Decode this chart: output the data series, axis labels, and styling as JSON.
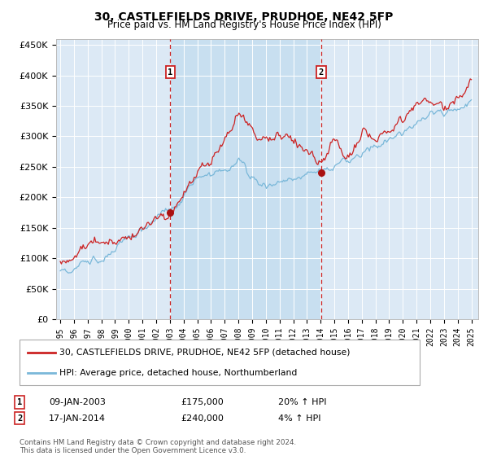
{
  "title": "30, CASTLEFIELDS DRIVE, PRUDHOE, NE42 5FP",
  "subtitle": "Price paid vs. HM Land Registry's House Price Index (HPI)",
  "background_color": "#ffffff",
  "plot_bg_color": "#dce9f5",
  "highlight_bg_color": "#c8dff0",
  "ylabel_ticks": [
    "£0",
    "£50K",
    "£100K",
    "£150K",
    "£200K",
    "£250K",
    "£300K",
    "£350K",
    "£400K",
    "£450K"
  ],
  "ytick_values": [
    0,
    50000,
    100000,
    150000,
    200000,
    250000,
    300000,
    350000,
    400000,
    450000
  ],
  "ylim": [
    0,
    460000
  ],
  "xlim_start": 1994.7,
  "xlim_end": 2025.5,
  "sale1_x": 2003.03,
  "sale1_y": 175000,
  "sale1_label": "1",
  "sale1_date": "09-JAN-2003",
  "sale1_price": "£175,000",
  "sale1_hpi": "20% ↑ HPI",
  "sale2_x": 2014.04,
  "sale2_y": 240000,
  "sale2_label": "2",
  "sale2_date": "17-JAN-2014",
  "sale2_price": "£240,000",
  "sale2_hpi": "4% ↑ HPI",
  "hpi_color": "#7ab8d9",
  "price_color": "#cc2222",
  "dashed_line_color": "#cc2222",
  "marker_color": "#aa1111",
  "legend_line1": "30, CASTLEFIELDS DRIVE, PRUDHOE, NE42 5FP (detached house)",
  "legend_line2": "HPI: Average price, detached house, Northumberland",
  "footer": "Contains HM Land Registry data © Crown copyright and database right 2024.\nThis data is licensed under the Open Government Licence v3.0.",
  "xticks": [
    1995,
    1996,
    1997,
    1998,
    1999,
    2000,
    2001,
    2002,
    2003,
    2004,
    2005,
    2006,
    2007,
    2008,
    2009,
    2010,
    2011,
    2012,
    2013,
    2014,
    2015,
    2016,
    2017,
    2018,
    2019,
    2020,
    2021,
    2022,
    2023,
    2024,
    2025
  ]
}
